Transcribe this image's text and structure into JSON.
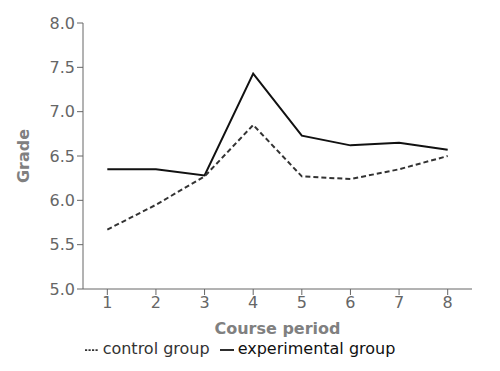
{
  "chart_data": {
    "type": "line",
    "x": [
      1,
      2,
      3,
      4,
      5,
      6,
      7,
      8
    ],
    "series": [
      {
        "name": "experimental group",
        "color": "#111111",
        "line_style": "solid",
        "values": [
          6.35,
          6.35,
          6.28,
          7.43,
          6.73,
          6.62,
          6.65,
          6.57
        ]
      },
      {
        "name": "control group",
        "color": "#333333",
        "line_style": "dashed",
        "values": [
          5.67,
          5.95,
          6.27,
          6.85,
          6.27,
          6.24,
          6.35,
          6.5
        ]
      }
    ],
    "xlabel": "Course period",
    "ylabel": "Grade",
    "xlim": [
      0.5,
      8.5
    ],
    "ylim": [
      5,
      8
    ],
    "xticks": [
      1,
      2,
      3,
      4,
      5,
      6,
      7,
      8
    ],
    "yticks": [
      {
        "value": 5,
        "label": "5.0"
      },
      {
        "value": 5.5,
        "label": "5.5"
      },
      {
        "value": 6,
        "label": "6.0"
      },
      {
        "value": 6.5,
        "label": "6.5"
      },
      {
        "value": 7,
        "label": "7.0"
      },
      {
        "value": 7.5,
        "label": "7.5"
      },
      {
        "value": 8,
        "label": "8.0"
      }
    ],
    "grid": false,
    "legend": "lower center"
  }
}
